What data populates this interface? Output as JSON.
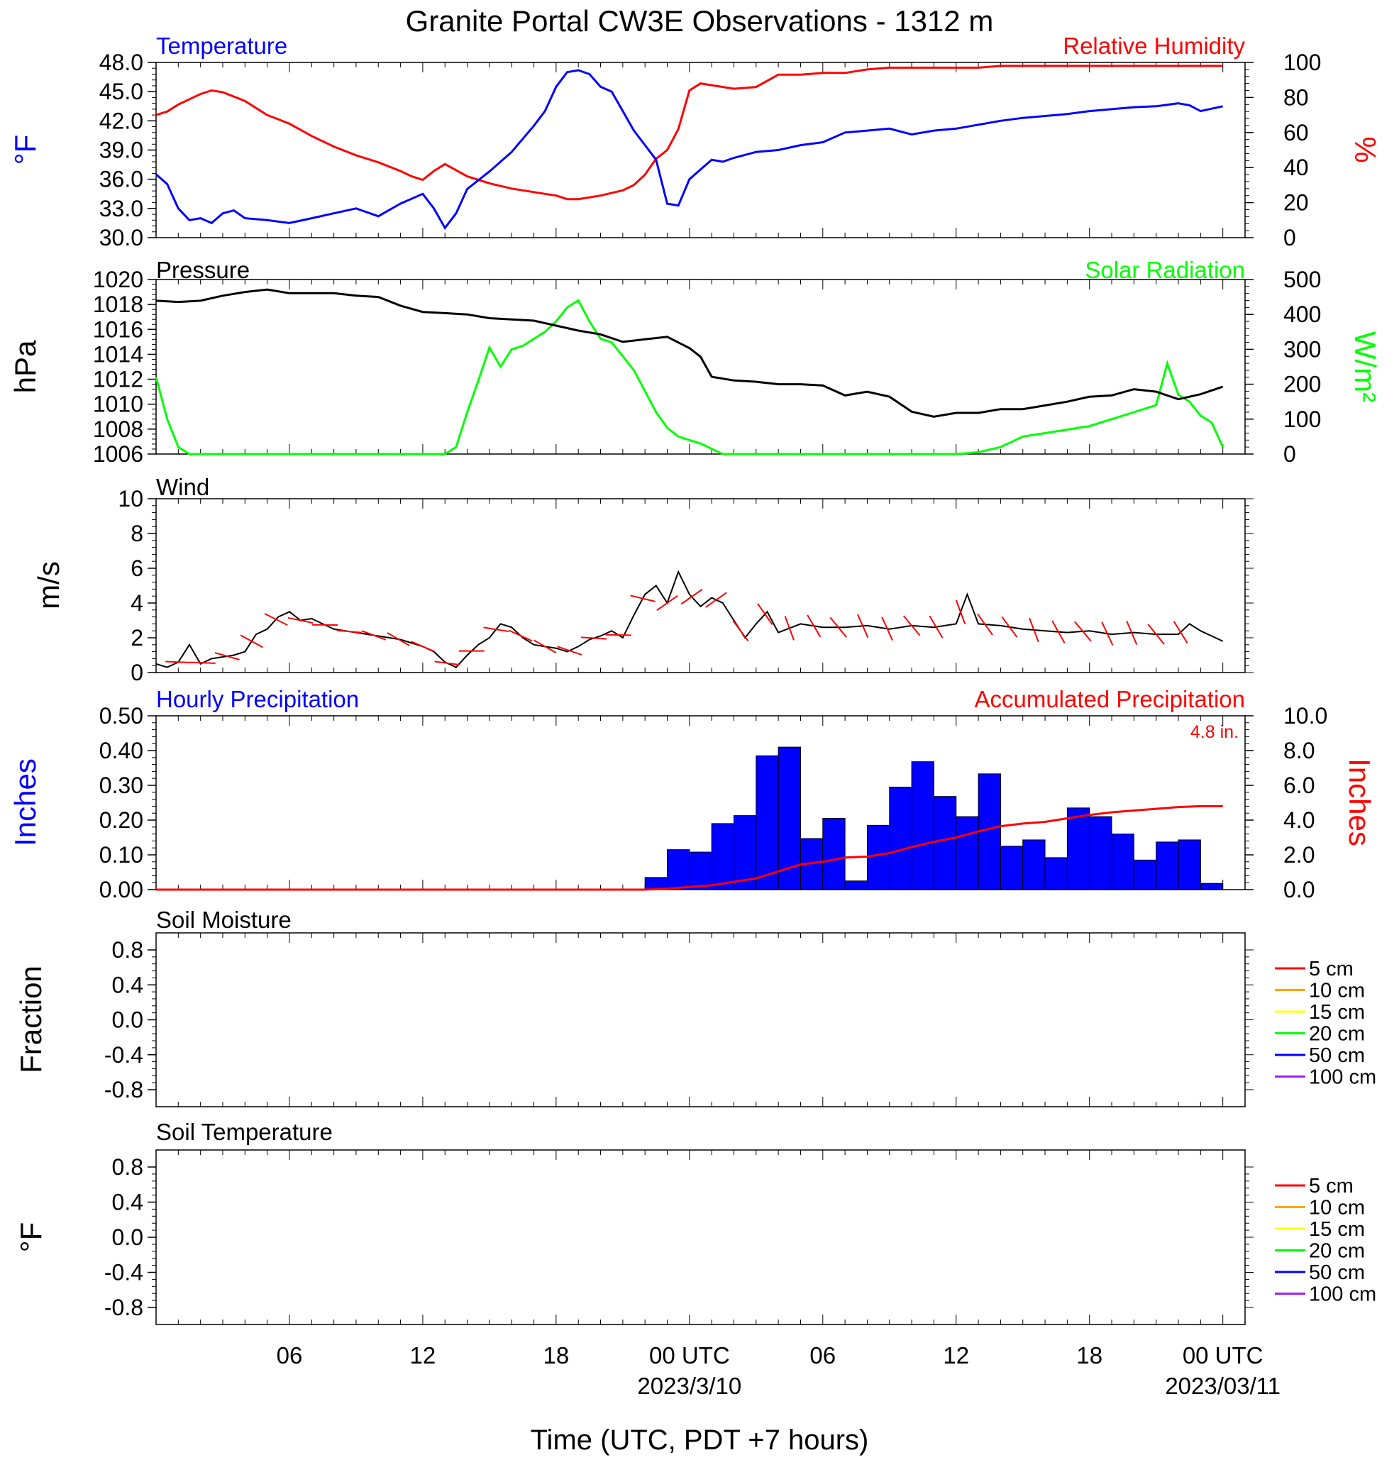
{
  "title": "Granite Portal CW3E Observations - 1312 m",
  "xaxis": {
    "label": "Time (UTC, PDT +7 hours)",
    "ticks": [
      {
        "hour": 6,
        "label": "06",
        "sub": ""
      },
      {
        "hour": 12,
        "label": "12",
        "sub": ""
      },
      {
        "hour": 18,
        "label": "18",
        "sub": ""
      },
      {
        "hour": 24,
        "label": "00 UTC",
        "sub": "2023/3/10"
      },
      {
        "hour": 30,
        "label": "06",
        "sub": ""
      },
      {
        "hour": 36,
        "label": "12",
        "sub": ""
      },
      {
        "hour": 42,
        "label": "18",
        "sub": ""
      },
      {
        "hour": 48,
        "label": "00 UTC",
        "sub": "2023/03/11"
      }
    ]
  },
  "colors": {
    "temperature": "#0000ff",
    "humidity": "#ff0000",
    "pressure": "#000000",
    "solar": "#00ff00",
    "wind": "#000000",
    "barbs": "#ff0000",
    "hourly_precip": "#0000ff",
    "accum_precip": "#ff0000"
  },
  "panels": {
    "temperature": {
      "left_title": "Temperature",
      "right_title": "Relative Humidity",
      "left_unit": "°F",
      "right_unit": "%",
      "left_ticks": [
        "48.0",
        "45.0",
        "42.0",
        "39.0",
        "36.0",
        "33.0",
        "30.0"
      ],
      "right_ticks": [
        "100",
        "80",
        "60",
        "40",
        "20",
        "0"
      ]
    },
    "pressure": {
      "left_title": "Pressure",
      "right_title": "Solar Radiation",
      "left_unit": "hPa",
      "right_unit": "W/m²",
      "left_ticks": [
        "1020",
        "1018",
        "1016",
        "1014",
        "1012",
        "1010",
        "1008",
        "1006"
      ],
      "right_ticks": [
        "500",
        "400",
        "300",
        "200",
        "100",
        "0"
      ]
    },
    "wind": {
      "left_title": "Wind",
      "left_unit": "m/s",
      "left_ticks": [
        "10",
        "8",
        "6",
        "4",
        "2",
        "0"
      ]
    },
    "precip": {
      "left_title": "Hourly Precipitation",
      "right_title": "Accumulated Precipitation",
      "annotation": "4.8 in.",
      "left_unit": "Inches",
      "right_unit": "Inches",
      "left_ticks": [
        "0.50",
        "0.40",
        "0.30",
        "0.20",
        "0.10",
        "0.00"
      ],
      "right_ticks": [
        "10.0",
        "8.0",
        "6.0",
        "4.0",
        "2.0",
        "0.0"
      ]
    },
    "soil_moisture": {
      "left_title": "Soil Moisture",
      "left_unit": "Fraction",
      "left_ticks": [
        "0.8",
        "0.4",
        "0.0",
        "-0.4",
        "-0.8"
      ]
    },
    "soil_temp": {
      "left_title": "Soil Temperature",
      "left_unit": "°F",
      "left_ticks": [
        "0.8",
        "0.4",
        "0.0",
        "-0.4",
        "-0.8"
      ]
    }
  },
  "soil_legend": [
    {
      "label": "5 cm",
      "color": "#ff0000"
    },
    {
      "label": "10 cm",
      "color": "#ffa500"
    },
    {
      "label": "15 cm",
      "color": "#ffff00"
    },
    {
      "label": "20 cm",
      "color": "#00ff00"
    },
    {
      "label": "50 cm",
      "color": "#0000ff"
    },
    {
      "label": "100 cm",
      "color": "#a020f0"
    }
  ],
  "chart_data": [
    {
      "type": "line",
      "title": "Temperature",
      "ylabel": "°F",
      "ylim": [
        30,
        48
      ],
      "x_hours_from": "2023-03-09 00 UTC",
      "series": [
        {
          "name": "Temperature",
          "x": [
            0,
            0.5,
            1,
            1.5,
            2,
            2.5,
            3,
            3.5,
            4,
            5,
            6,
            7,
            8,
            9,
            10,
            11,
            12,
            12.5,
            13,
            13.5,
            14,
            15,
            16,
            17,
            17.5,
            18,
            18.5,
            19,
            19.5,
            20,
            20.5,
            21,
            21.5,
            22,
            22.5,
            23,
            23.5,
            24,
            24.5,
            25,
            25.5,
            26,
            27,
            28,
            29,
            30,
            31,
            32,
            33,
            34,
            35,
            36,
            37,
            38,
            39,
            40,
            41,
            42,
            43,
            44,
            45,
            46,
            46.5,
            47,
            48
          ],
          "y": [
            36.5,
            35.5,
            33.0,
            31.8,
            32.0,
            31.5,
            32.5,
            32.8,
            32.0,
            31.8,
            31.5,
            32.0,
            32.5,
            33.0,
            32.2,
            33.5,
            34.5,
            33.0,
            31.0,
            32.5,
            35.0,
            36.8,
            38.8,
            41.5,
            43.0,
            45.5,
            47.0,
            47.2,
            46.8,
            45.5,
            45.0,
            43.0,
            41.0,
            39.5,
            38.0,
            33.5,
            33.3,
            36.0,
            37.0,
            38.0,
            37.8,
            38.2,
            38.8,
            39.0,
            39.5,
            39.8,
            40.8,
            41.0,
            41.2,
            40.6,
            41.0,
            41.2,
            41.6,
            42.0,
            42.3,
            42.5,
            42.7,
            43.0,
            43.2,
            43.4,
            43.5,
            43.8,
            43.6,
            43.0,
            43.5
          ]
        }
      ]
    },
    {
      "type": "line",
      "title": "Relative Humidity",
      "ylabel": "%",
      "ylim": [
        0,
        100
      ],
      "x_hours_from": "2023-03-09 00 UTC",
      "series": [
        {
          "name": "Relative Humidity",
          "x": [
            0,
            0.5,
            1,
            2,
            2.5,
            3,
            4,
            5,
            6,
            7,
            8,
            9,
            10,
            11,
            11.5,
            12,
            12.5,
            13,
            14,
            15,
            16,
            17,
            17.5,
            18,
            18.5,
            19,
            20,
            21,
            21.5,
            22,
            22.5,
            23,
            23.5,
            24,
            24.5,
            25,
            26,
            27,
            28,
            29,
            30,
            31,
            32,
            33,
            34,
            35,
            36,
            37,
            38,
            39,
            40,
            41,
            42,
            43,
            44,
            45,
            46,
            47,
            48
          ],
          "y": [
            70,
            72,
            76,
            82,
            84,
            83,
            78,
            70,
            65,
            58,
            52,
            47,
            43,
            38,
            35,
            33,
            38,
            42,
            35,
            31,
            28,
            26,
            25,
            24,
            22,
            22,
            24,
            27,
            30,
            36,
            45,
            50,
            62,
            84,
            88,
            87,
            85,
            86,
            93,
            93,
            94,
            94,
            96,
            97,
            97,
            97,
            97,
            97,
            98,
            98,
            98,
            98,
            98,
            98,
            98,
            98,
            98,
            98,
            98
          ]
        }
      ]
    },
    {
      "type": "line",
      "title": "Pressure",
      "ylabel": "hPa",
      "ylim": [
        1006,
        1020
      ],
      "x_hours_from": "2023-03-09 00 UTC",
      "series": [
        {
          "name": "Pressure",
          "x": [
            0,
            1,
            2,
            3,
            4,
            5,
            6,
            7,
            8,
            9,
            10,
            11,
            12,
            13,
            14,
            15,
            16,
            17,
            18,
            19,
            20,
            21,
            22,
            23,
            24,
            24.5,
            25,
            26,
            27,
            28,
            29,
            30,
            31,
            32,
            33,
            34,
            35,
            36,
            37,
            38,
            39,
            40,
            41,
            42,
            43,
            44,
            45,
            46,
            47,
            48
          ],
          "y": [
            1018.3,
            1018.2,
            1018.3,
            1018.7,
            1019.0,
            1019.2,
            1018.9,
            1018.9,
            1018.9,
            1018.7,
            1018.6,
            1017.9,
            1017.4,
            1017.3,
            1017.2,
            1016.9,
            1016.8,
            1016.7,
            1016.3,
            1015.9,
            1015.6,
            1015.0,
            1015.2,
            1015.4,
            1014.5,
            1013.8,
            1012.2,
            1011.9,
            1011.8,
            1011.6,
            1011.6,
            1011.5,
            1010.7,
            1011.0,
            1010.6,
            1009.4,
            1009.0,
            1009.3,
            1009.3,
            1009.6,
            1009.6,
            1009.9,
            1010.2,
            1010.6,
            1010.7,
            1011.2,
            1011.0,
            1010.4,
            1010.8,
            1011.4
          ]
        }
      ]
    },
    {
      "type": "line",
      "title": "Solar Radiation",
      "ylabel": "W/m²",
      "ylim": [
        0,
        500
      ],
      "x_hours_from": "2023-03-09 00 UTC",
      "series": [
        {
          "name": "Solar Radiation",
          "x": [
            0,
            0.5,
            1,
            1.5,
            13,
            13.5,
            14,
            14.5,
            15,
            15.5,
            16,
            16.5,
            17,
            17.5,
            18,
            18.5,
            19,
            19.5,
            20,
            20.5,
            21,
            21.5,
            22,
            22.5,
            23,
            23.5,
            24,
            24.5,
            25,
            25.5,
            30,
            35,
            36,
            37,
            38,
            39,
            40,
            41,
            42,
            43,
            44,
            45,
            45.5,
            46,
            46.5,
            47,
            47.5,
            48
          ],
          "y": [
            220,
            100,
            20,
            0,
            0,
            20,
            120,
            210,
            305,
            250,
            300,
            310,
            330,
            350,
            380,
            420,
            440,
            380,
            330,
            320,
            280,
            240,
            180,
            120,
            75,
            50,
            40,
            30,
            15,
            0,
            0,
            0,
            0,
            5,
            20,
            50,
            60,
            70,
            80,
            100,
            120,
            140,
            260,
            170,
            150,
            110,
            90,
            20
          ]
        }
      ]
    },
    {
      "type": "line",
      "title": "Wind",
      "ylabel": "m/s",
      "ylim": [
        0,
        10
      ],
      "x_hours_from": "2023-03-09 00 UTC",
      "series": [
        {
          "name": "Wind",
          "x": [
            0,
            0.5,
            1,
            1.5,
            2,
            2.5,
            3,
            3.5,
            4,
            4.5,
            5,
            5.5,
            6,
            6.5,
            7,
            7.5,
            8,
            8.5,
            9,
            10,
            11,
            12,
            12.5,
            13,
            13.5,
            14,
            14.5,
            15,
            15.5,
            16,
            16.5,
            17,
            17.5,
            18,
            18.5,
            19,
            19.5,
            20,
            20.5,
            21,
            21.5,
            22,
            22.5,
            23,
            23.5,
            24,
            24.5,
            25,
            25.5,
            26,
            26.5,
            27,
            27.5,
            28,
            29,
            30,
            31,
            32,
            33,
            34,
            35,
            36,
            36.5,
            37,
            38,
            39,
            40,
            41,
            42,
            43,
            44,
            45,
            46,
            46.5,
            47,
            48
          ],
          "y": [
            0.5,
            0.3,
            0.6,
            1.6,
            0.5,
            0.8,
            0.9,
            1.0,
            1.2,
            2.2,
            2.5,
            3.2,
            3.5,
            3.0,
            3.1,
            2.8,
            2.5,
            2.4,
            2.3,
            2.1,
            1.9,
            1.5,
            1.2,
            0.6,
            0.3,
            1.0,
            1.6,
            2.0,
            2.8,
            2.6,
            2.0,
            1.6,
            1.5,
            1.4,
            1.2,
            1.5,
            1.9,
            2.1,
            2.4,
            2.0,
            3.3,
            4.5,
            5.0,
            4.0,
            5.8,
            4.5,
            3.8,
            4.3,
            4.0,
            3.0,
            2.0,
            2.8,
            3.5,
            2.3,
            2.8,
            2.6,
            2.6,
            2.7,
            2.5,
            2.7,
            2.6,
            2.8,
            4.5,
            2.8,
            2.7,
            2.5,
            2.4,
            2.3,
            2.4,
            2.2,
            2.3,
            2.2,
            2.2,
            2.8,
            2.4,
            1.8
          ]
        }
      ]
    },
    {
      "type": "bar",
      "title": "Hourly Precipitation",
      "ylabel": "Inches",
      "ylim": [
        0,
        0.5
      ],
      "x_hours_from": "2023-03-09 00 UTC",
      "bars": [
        {
          "start": 22,
          "value": 0.035
        },
        {
          "start": 23,
          "value": 0.115
        },
        {
          "start": 24,
          "value": 0.108
        },
        {
          "start": 25,
          "value": 0.19
        },
        {
          "start": 26,
          "value": 0.213
        },
        {
          "start": 27,
          "value": 0.385
        },
        {
          "start": 28,
          "value": 0.41
        },
        {
          "start": 29,
          "value": 0.147
        },
        {
          "start": 30,
          "value": 0.205
        },
        {
          "start": 31,
          "value": 0.025
        },
        {
          "start": 32,
          "value": 0.185
        },
        {
          "start": 33,
          "value": 0.295
        },
        {
          "start": 34,
          "value": 0.368
        },
        {
          "start": 35,
          "value": 0.268
        },
        {
          "start": 36,
          "value": 0.21
        },
        {
          "start": 37,
          "value": 0.333
        },
        {
          "start": 38,
          "value": 0.125
        },
        {
          "start": 39,
          "value": 0.143
        },
        {
          "start": 40,
          "value": 0.092
        },
        {
          "start": 41,
          "value": 0.235
        },
        {
          "start": 42,
          "value": 0.21
        },
        {
          "start": 43,
          "value": 0.16
        },
        {
          "start": 44,
          "value": 0.085
        },
        {
          "start": 45,
          "value": 0.137
        },
        {
          "start": 46,
          "value": 0.143
        },
        {
          "start": 47,
          "value": 0.018
        }
      ]
    },
    {
      "type": "line",
      "title": "Accumulated Precipitation",
      "ylabel": "Inches",
      "ylim": [
        0,
        10
      ],
      "x_hours_from": "2023-03-09 00 UTC",
      "series": [
        {
          "name": "Accumulated Precipitation",
          "x": [
            0,
            22,
            23,
            24,
            25,
            26,
            27,
            28,
            29,
            30,
            31,
            32,
            33,
            34,
            35,
            36,
            37,
            38,
            39,
            40,
            41,
            42,
            43,
            44,
            45,
            46,
            47,
            48
          ],
          "y": [
            0,
            0,
            0.05,
            0.15,
            0.25,
            0.45,
            0.65,
            1.05,
            1.45,
            1.6,
            1.85,
            1.9,
            2.1,
            2.45,
            2.75,
            3.0,
            3.35,
            3.65,
            3.8,
            3.9,
            4.1,
            4.3,
            4.45,
            4.55,
            4.65,
            4.75,
            4.8,
            4.8
          ]
        }
      ]
    }
  ]
}
